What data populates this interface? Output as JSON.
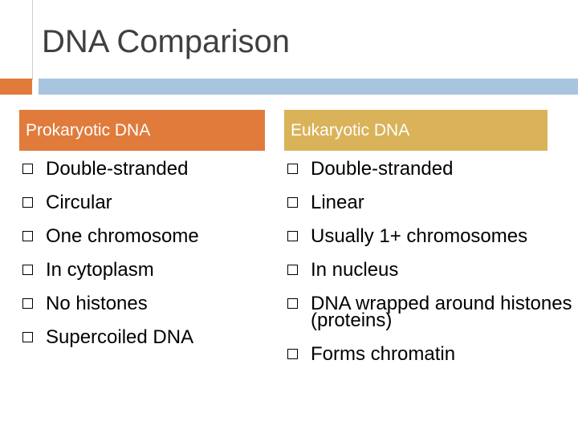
{
  "title": "DNA Comparison",
  "columns": [
    {
      "heading": "Prokaryotic DNA",
      "items": [
        "Double-stranded",
        "Circular",
        "One chromosome",
        "In cytoplasm",
        "No histones",
        "Supercoiled DNA"
      ]
    },
    {
      "heading": "Eukaryotic DNA",
      "items": [
        "Double-stranded",
        "Linear",
        "Usually 1+ chromosomes",
        "In nucleus",
        "DNA wrapped around histones (proteins)",
        "Forms chromatin"
      ]
    }
  ]
}
